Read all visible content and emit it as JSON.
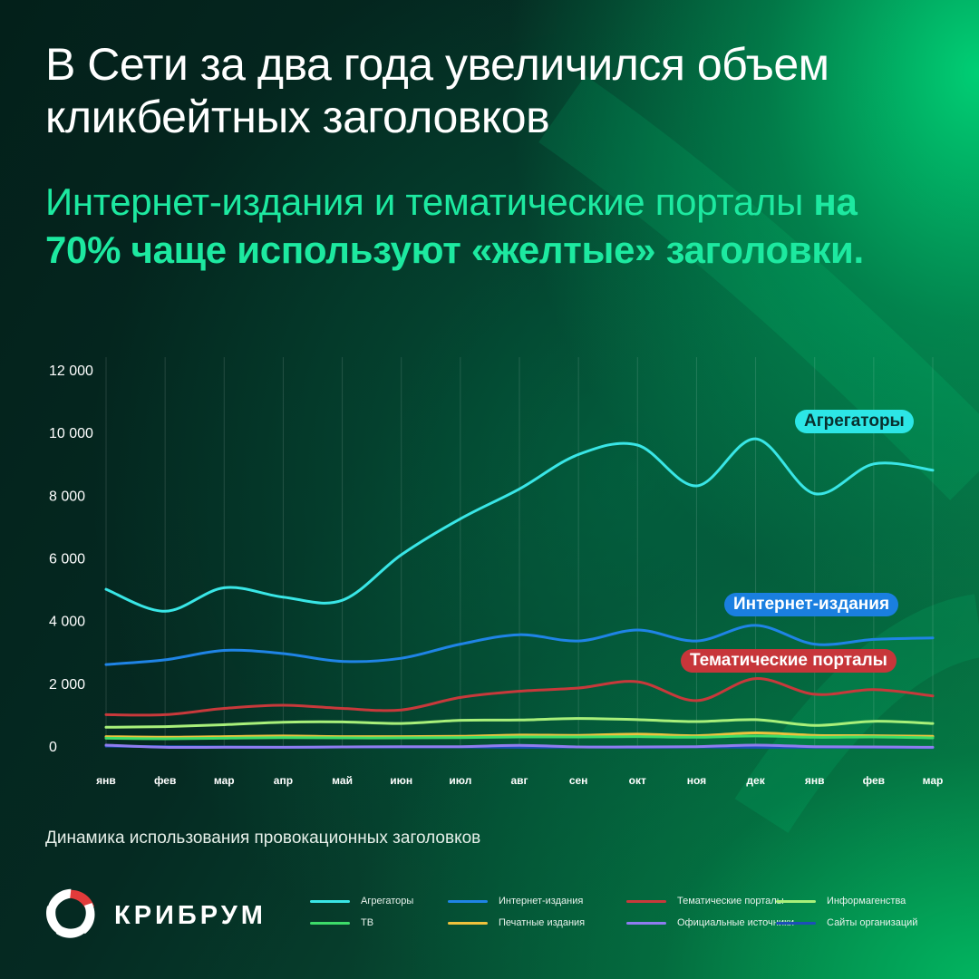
{
  "header": {
    "title": "В Сети за два года увеличился объем кликбейтных заголовков",
    "subtitle_plain": "Интернет-издания и тематические порталы ",
    "subtitle_bold": "на 70% чаще используют «желтые» заголовки."
  },
  "labels": {
    "aggregators": "Агрегаторы",
    "internet": "Интернет-издания",
    "thematic": "Тематические порталы"
  },
  "caption": "Динамика использования провокационных заголовков",
  "brand": {
    "name": "КРИБРУМ",
    "logo_icon": "kribrum-logo-icon"
  },
  "chart_data": {
    "type": "line",
    "x": [
      "янв",
      "фев",
      "мар",
      "апр",
      "май",
      "июн",
      "июл",
      "авг",
      "сен",
      "окт",
      "ноя",
      "дек",
      "янв",
      "фев",
      "мар"
    ],
    "ylim": [
      0,
      12000
    ],
    "yticks": [
      0,
      2000,
      4000,
      6000,
      8000,
      10000,
      12000
    ],
    "ytick_labels": [
      "0",
      "2 000",
      "4 000",
      "6 000",
      "8 000",
      "10 000",
      "12 000"
    ],
    "grid": "vertical",
    "legend": "bottom",
    "series": [
      {
        "name": "Агрегаторы",
        "color": "#39e6e6",
        "values": [
          5000,
          4300,
          5050,
          4750,
          4650,
          6100,
          7250,
          8200,
          9300,
          9600,
          8300,
          9800,
          8050,
          9000,
          8800
        ]
      },
      {
        "name": "Интернет-издания",
        "color": "#1f84e6",
        "values": [
          2600,
          2750,
          3050,
          2950,
          2700,
          2800,
          3250,
          3550,
          3350,
          3700,
          3350,
          3850,
          3250,
          3400,
          3450
        ]
      },
      {
        "name": "Тематические порталы",
        "color": "#c8393b",
        "values": [
          1000,
          1000,
          1200,
          1300,
          1200,
          1150,
          1550,
          1750,
          1850,
          2050,
          1450,
          2150,
          1650,
          1800,
          1600
        ]
      },
      {
        "name": "Информагенства",
        "color": "#a8f07a",
        "values": [
          600,
          620,
          680,
          760,
          770,
          720,
          820,
          830,
          880,
          840,
          780,
          840,
          660,
          790,
          720
        ]
      },
      {
        "name": "ТВ",
        "color": "#3ddc6a",
        "values": [
          250,
          230,
          250,
          270,
          260,
          260,
          270,
          290,
          290,
          300,
          280,
          320,
          280,
          290,
          260
        ]
      },
      {
        "name": "Печатные издания",
        "color": "#f0c23c",
        "values": [
          300,
          280,
          300,
          320,
          300,
          300,
          310,
          350,
          340,
          380,
          330,
          420,
          340,
          330,
          310
        ]
      },
      {
        "name": "Официальные источники",
        "color": "#8f7cf0",
        "values": [
          30,
          -40,
          -40,
          -40,
          -30,
          -20,
          -20,
          20,
          -30,
          -30,
          -20,
          30,
          -20,
          -30,
          -40
        ]
      },
      {
        "name": "Сайты организаций",
        "color": "#1d4fb8",
        "values": [
          0,
          -20,
          -30,
          -40,
          -30,
          -30,
          -30,
          -40,
          -30,
          -40,
          -30,
          -40,
          -40,
          -40,
          -50
        ]
      }
    ]
  }
}
